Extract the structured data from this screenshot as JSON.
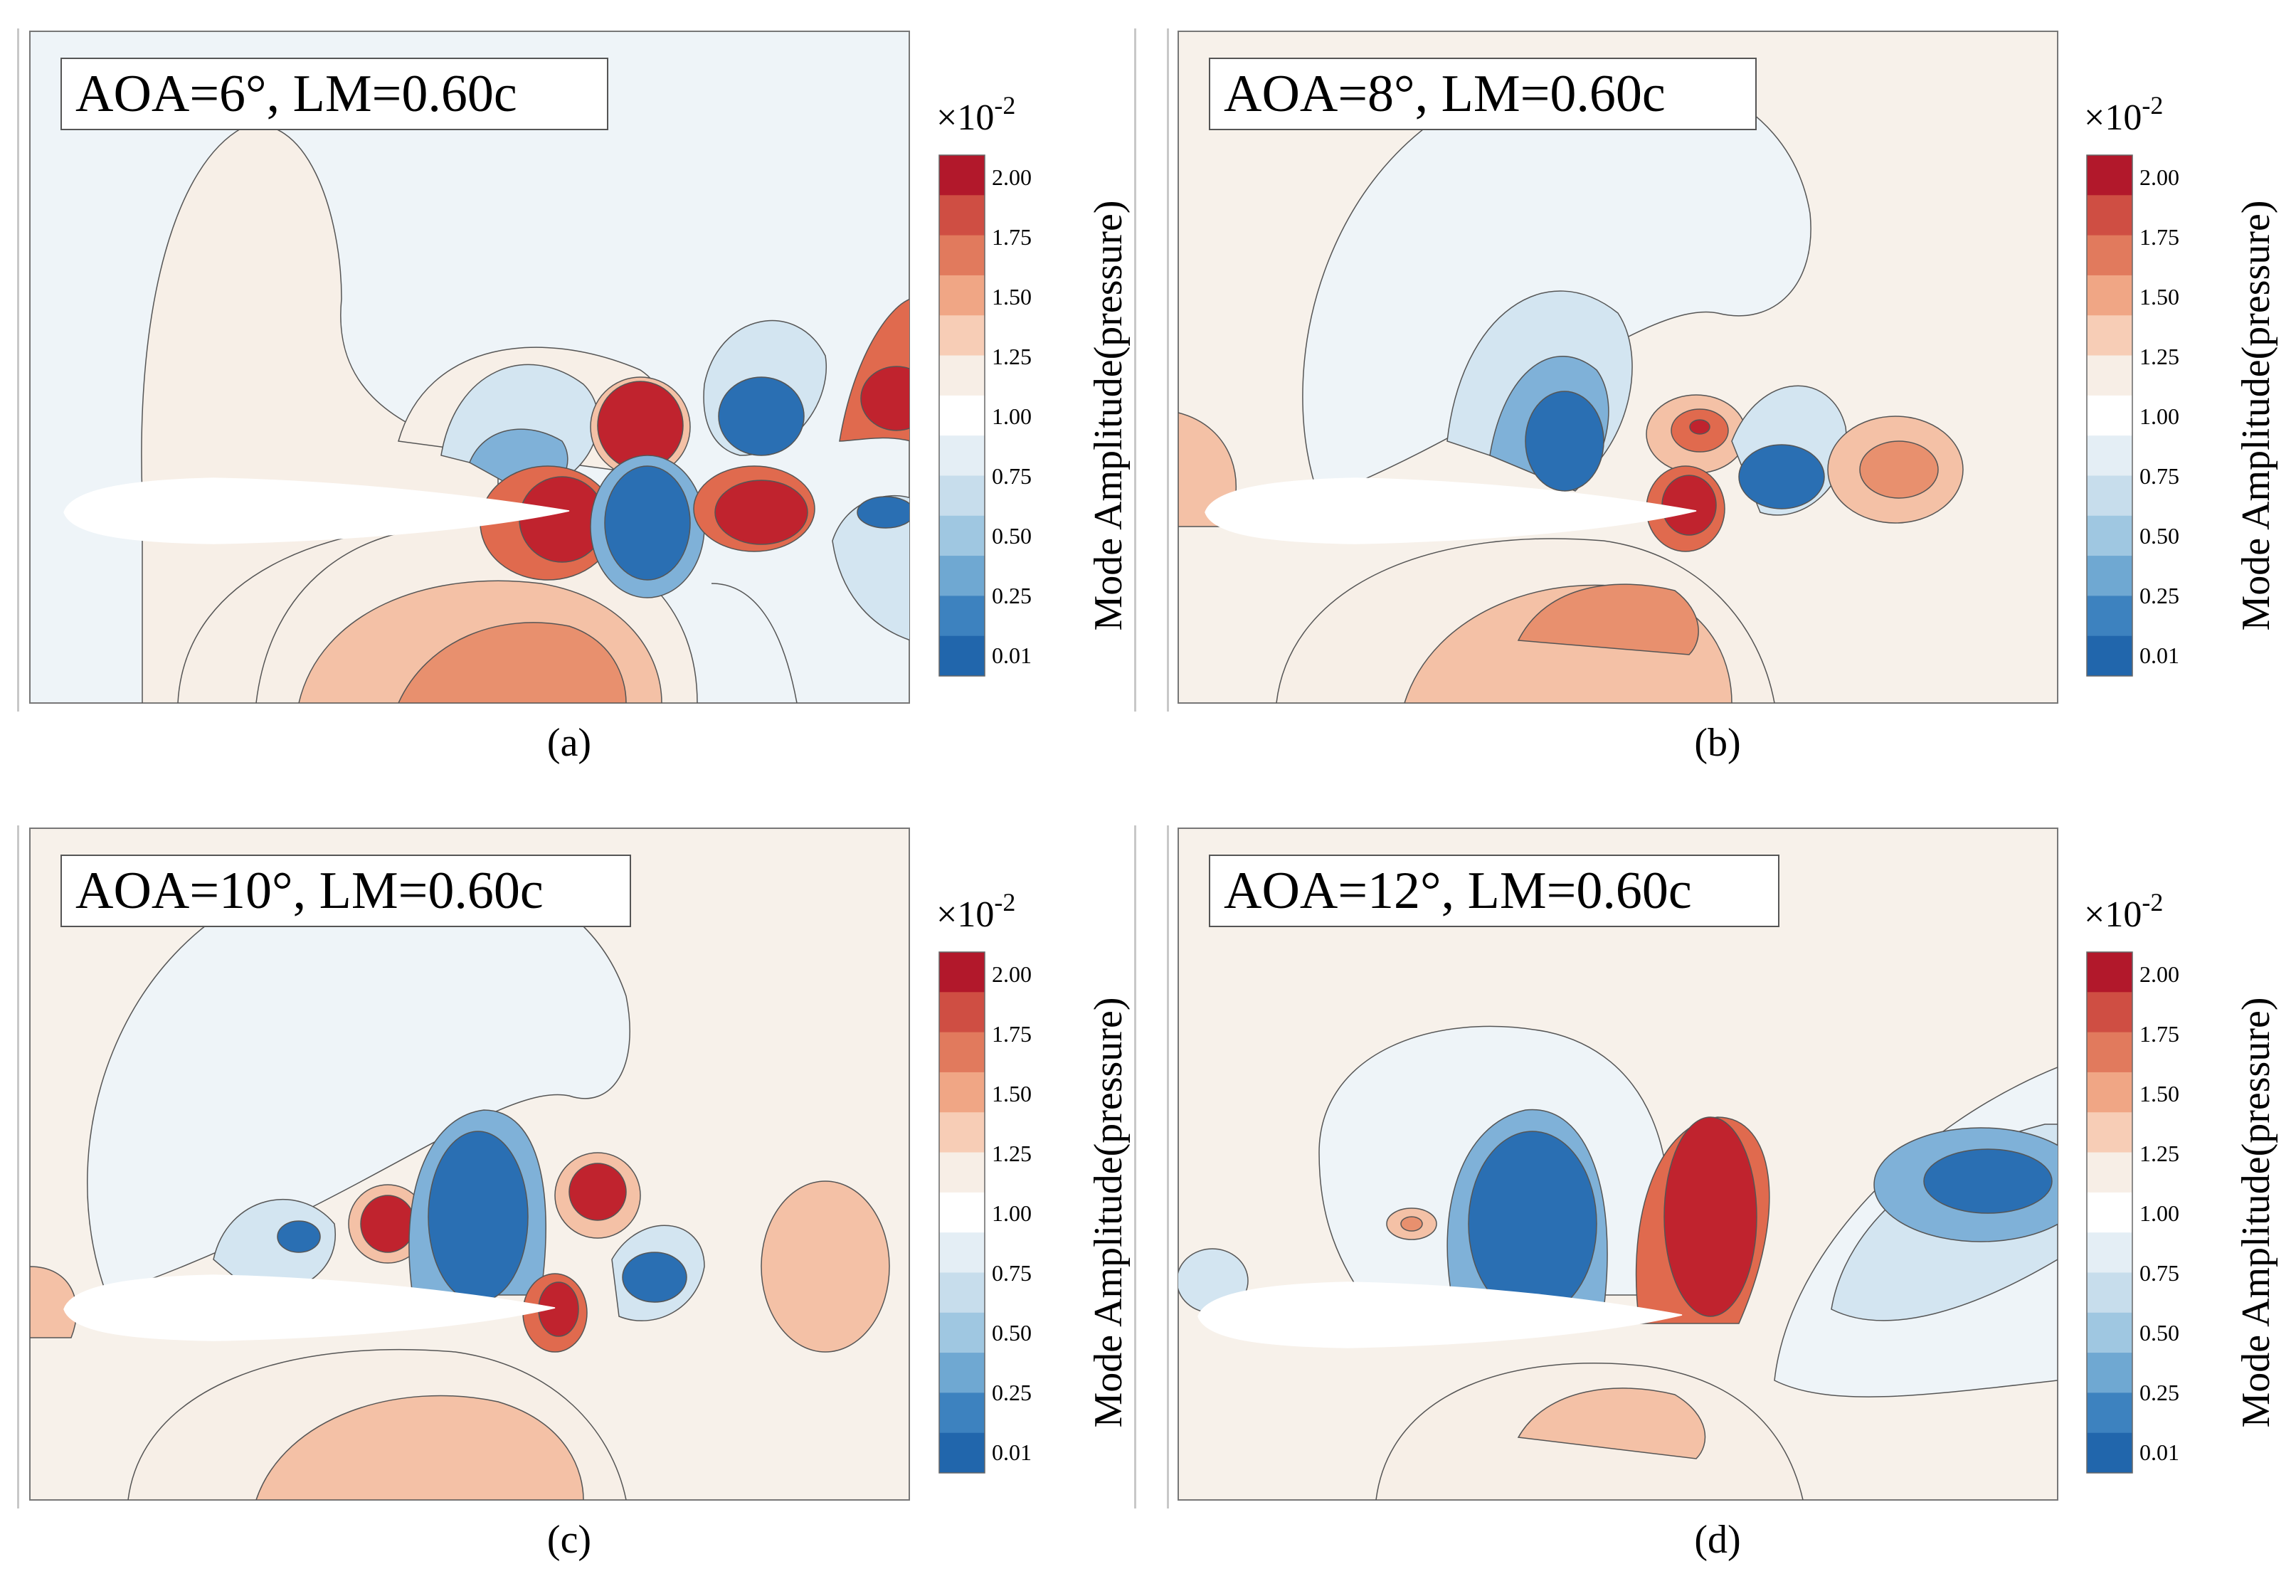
{
  "figure": {
    "panels": [
      {
        "id": "a",
        "annotation": "AOA=6°, LM=0.60c",
        "caption": "(a)"
      },
      {
        "id": "b",
        "annotation": "AOA=8°, LM=0.60c",
        "caption": "(b)"
      },
      {
        "id": "c",
        "annotation": "AOA=10°, LM=0.60c",
        "caption": "(c)"
      },
      {
        "id": "d",
        "annotation": "AOA=12°, LM=0.60c",
        "caption": "(d)"
      }
    ],
    "colorbar": {
      "multiplier_base": "×10",
      "multiplier_exp": "-2",
      "label": "Mode Amplitude(pressure)",
      "ticks": [
        "2.00",
        "1.75",
        "1.50",
        "1.25",
        "1.00",
        "0.75",
        "0.50",
        "0.25",
        "0.01"
      ],
      "colors": [
        "#b2182b",
        "#cf4e43",
        "#e17a5d",
        "#f0a685",
        "#f7cdb6",
        "#f7eee6",
        "#ffffff",
        "#e4eef5",
        "#c7ddec",
        "#9fc7e1",
        "#6fa8d2",
        "#3d82bf",
        "#2166ac"
      ]
    },
    "colors": {
      "red_core": "#c0232e",
      "red_mid": "#e06a4e",
      "red_light": "#f4c1a6",
      "cream": "#f7efe7",
      "blue_core": "#2a6fb3",
      "blue_mid": "#7fb1d8",
      "blue_light": "#d3e5f1",
      "field_blue": "#eef4f8",
      "field_cream": "#f7f1ea",
      "airfoil": "#ffffff"
    }
  }
}
